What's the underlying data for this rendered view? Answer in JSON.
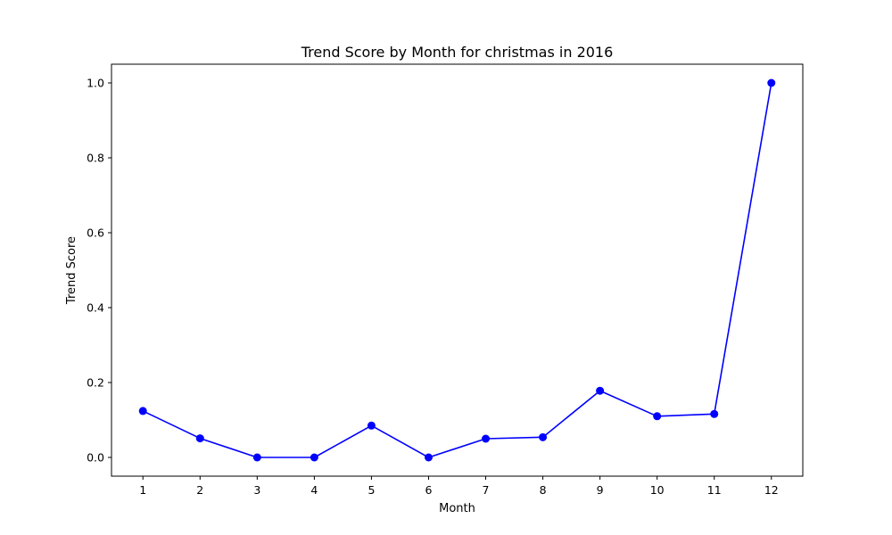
{
  "chart_data": {
    "type": "line",
    "title": "Trend Score by Month for christmas in 2016",
    "xlabel": "Month",
    "ylabel": "Trend Score",
    "x": [
      1,
      2,
      3,
      4,
      5,
      6,
      7,
      8,
      9,
      10,
      11,
      12
    ],
    "x_tick_labels": [
      "1",
      "2",
      "3",
      "4",
      "5",
      "6",
      "7",
      "8",
      "9",
      "10",
      "11",
      "12"
    ],
    "y_ticks": [
      0.0,
      0.2,
      0.4,
      0.6,
      0.8,
      1.0
    ],
    "y_tick_labels": [
      "0.0",
      "0.2",
      "0.4",
      "0.6",
      "0.8",
      "1.0"
    ],
    "xlim": [
      0.45,
      12.55
    ],
    "ylim": [
      -0.05,
      1.05
    ],
    "grid": false,
    "series": [
      {
        "name": "christmas",
        "color": "#0000ff",
        "marker": "circle",
        "values": [
          0.124,
          0.051,
          0.0,
          0.0,
          0.085,
          0.0,
          0.05,
          0.054,
          0.178,
          0.11,
          0.116,
          1.0
        ]
      }
    ]
  }
}
